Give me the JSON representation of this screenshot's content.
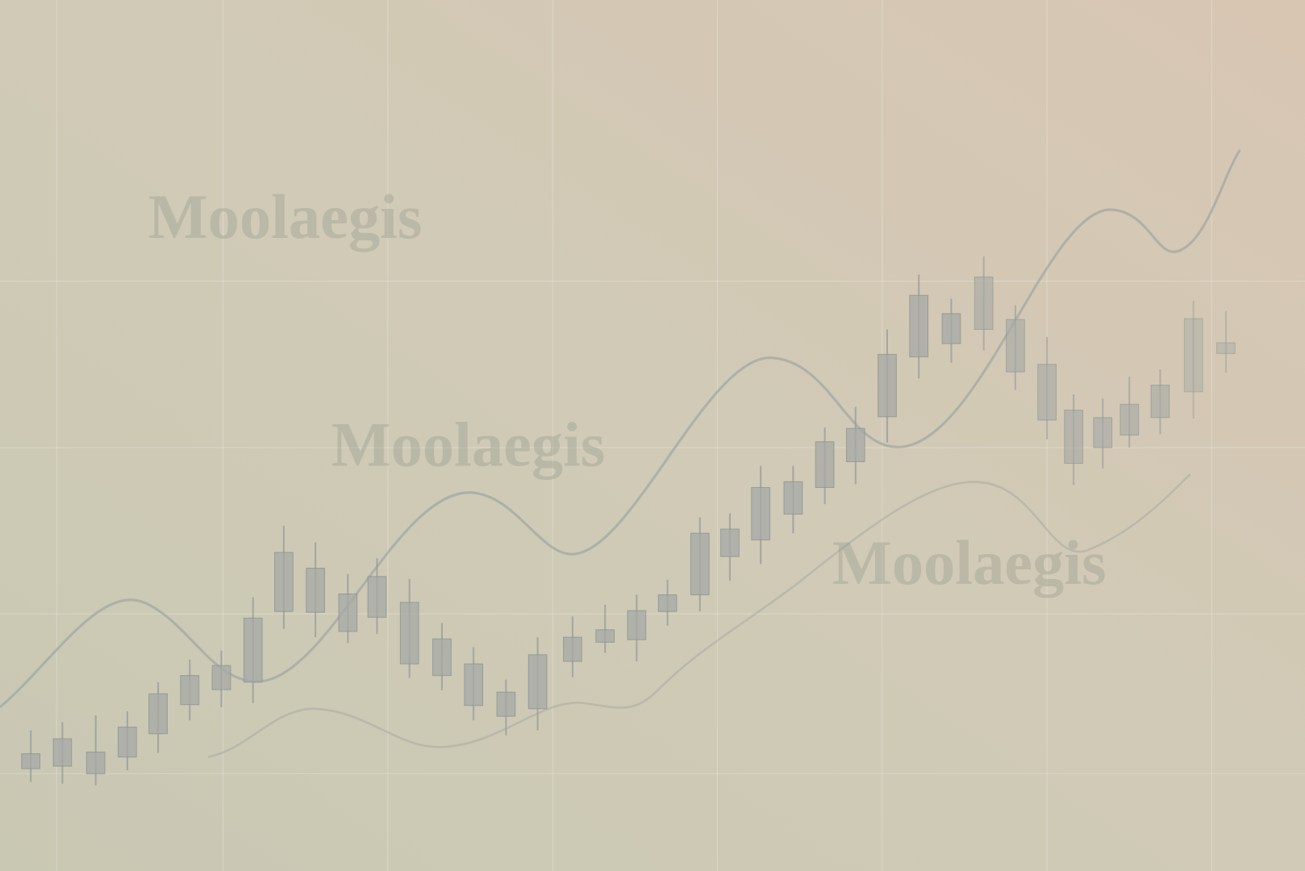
{
  "watermarks": [
    "Moolaegis",
    "Moolaegis",
    "Moolaegis"
  ]
}
